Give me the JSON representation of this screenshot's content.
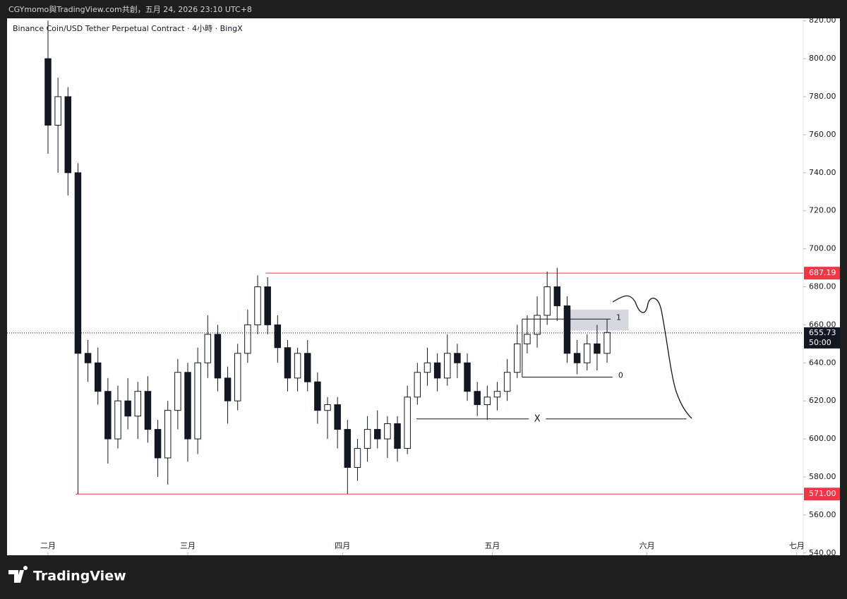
{
  "header": "CGYmomo與TradingView.com共創，五月 24, 2026 23:10 UTC+8",
  "footer": {
    "brand": "TradingView"
  },
  "chart_data": {
    "type": "candlestick",
    "title": "Binance Coin/USD Tether Perpetual Contract · 4小時 · BingX",
    "color": "#131722",
    "x": [
      0,
      2,
      4,
      6,
      8,
      10,
      12,
      14,
      16,
      18,
      20,
      22,
      24,
      26,
      28,
      30,
      32,
      34,
      36,
      38,
      40,
      42,
      44,
      46,
      48,
      50,
      52,
      54,
      56,
      58,
      60,
      62,
      64,
      66,
      68,
      70,
      72,
      74,
      76,
      78,
      80,
      82,
      84,
      86,
      88,
      90,
      92,
      94,
      96,
      98,
      100,
      102,
      104,
      106,
      108,
      110,
      112
    ],
    "open": [
      800,
      765,
      780,
      740,
      645,
      640,
      625,
      600,
      620,
      612,
      625,
      605,
      590,
      615,
      635,
      600,
      640,
      655,
      632,
      620,
      645,
      660,
      680,
      660,
      648,
      632,
      645,
      630,
      615,
      618,
      605,
      585,
      595,
      605,
      600,
      608,
      595,
      622,
      635,
      640,
      632,
      645,
      640,
      625,
      618,
      622,
      625,
      635,
      650,
      655,
      665,
      680,
      670,
      645,
      640,
      650,
      645
    ],
    "high": [
      820,
      790,
      785,
      745,
      652,
      648,
      632,
      628,
      632,
      630,
      633,
      610,
      620,
      642,
      640,
      648,
      665,
      660,
      638,
      650,
      668,
      686,
      685,
      665,
      652,
      648,
      652,
      635,
      622,
      622,
      610,
      600,
      612,
      615,
      612,
      612,
      628,
      640,
      648,
      645,
      655,
      650,
      645,
      630,
      628,
      630,
      642,
      660,
      665,
      675,
      688,
      690,
      675,
      652,
      655,
      660,
      663
    ],
    "low": [
      750,
      740,
      728,
      571,
      630,
      618,
      587,
      595,
      605,
      600,
      598,
      580,
      576,
      605,
      588,
      592,
      632,
      625,
      608,
      615,
      640,
      655,
      655,
      640,
      625,
      625,
      625,
      608,
      600,
      595,
      571,
      578,
      588,
      595,
      590,
      588,
      592,
      618,
      628,
      625,
      628,
      632,
      620,
      612,
      610,
      615,
      620,
      632,
      645,
      648,
      660,
      662,
      640,
      634,
      636,
      636,
      640
    ],
    "close": [
      765,
      780,
      740,
      645,
      640,
      625,
      600,
      620,
      612,
      625,
      605,
      590,
      615,
      635,
      600,
      640,
      655,
      632,
      620,
      645,
      660,
      680,
      660,
      648,
      632,
      645,
      630,
      615,
      618,
      605,
      585,
      595,
      605,
      600,
      608,
      595,
      622,
      635,
      640,
      632,
      645,
      640,
      625,
      618,
      622,
      625,
      635,
      650,
      655,
      665,
      680,
      670,
      645,
      640,
      650,
      645,
      656
    ],
    "xlim": [
      -8.2,
      151.3
    ],
    "xticks": [
      {
        "value": 0,
        "label": "二月"
      },
      {
        "value": 28,
        "label": "三月"
      },
      {
        "value": 59,
        "label": "四月"
      },
      {
        "value": 89,
        "label": "五月"
      },
      {
        "value": 120,
        "label": "六月"
      },
      {
        "value": 150,
        "label": "七月"
      }
    ],
    "ylim": [
      538.8,
      821.2
    ],
    "yticks": [
      {
        "value": 540,
        "label": "540.00"
      },
      {
        "value": 560,
        "label": "560.00"
      },
      {
        "value": 580,
        "label": "580.00"
      },
      {
        "value": 600,
        "label": "600.00"
      },
      {
        "value": 620,
        "label": "620.00"
      },
      {
        "value": 640,
        "label": "640.00"
      },
      {
        "value": 660,
        "label": "660.00"
      },
      {
        "value": 680,
        "label": "680.00"
      },
      {
        "value": 700,
        "label": "700.00"
      },
      {
        "value": 720,
        "label": "720.00"
      },
      {
        "value": 740,
        "label": "740.00"
      },
      {
        "value": 760,
        "label": "760.00"
      },
      {
        "value": 780,
        "label": "780.00"
      },
      {
        "value": 800,
        "label": "800.00"
      },
      {
        "value": 820,
        "label": "820.00"
      }
    ],
    "price_lines": [
      {
        "value": 687.19,
        "label": "687.19",
        "x_start": 43.6,
        "color": "#f23645"
      },
      {
        "value": 571,
        "label": "571.00",
        "x_start": 5.5,
        "color": "#f23645"
      }
    ],
    "last_price": {
      "value": 655.73,
      "label": "655.73",
      "countdown": "50:00"
    },
    "levels": [
      {
        "label": "1",
        "value": 663,
        "x_range": [
          95,
          112.7
        ]
      },
      {
        "label": "0",
        "value": 632.5,
        "x_range": [
          95,
          113.1
        ]
      },
      {
        "label": "X",
        "value": 610.5,
        "x_range": [
          73.8,
          127.9
        ]
      }
    ],
    "zone": {
      "x_range": [
        103.5,
        116.3
      ],
      "y_range": [
        657,
        668
      ]
    }
  }
}
